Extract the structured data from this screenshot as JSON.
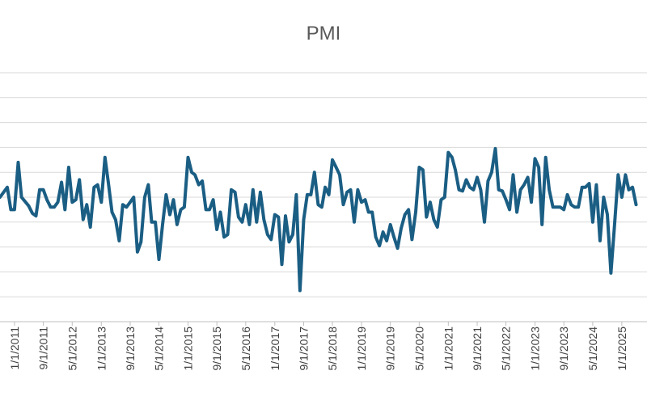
{
  "chart_data": {
    "type": "line",
    "title": "PMI",
    "xlabel": "",
    "ylabel": "",
    "grid": true,
    "legend": "none",
    "ylim": [
      44,
      64
    ],
    "xlim": [
      "2010-09-01",
      "2025-08-01"
    ],
    "x_tick_labels": [
      "1/1/2011",
      "9/1/2011",
      "5/1/2012",
      "1/1/2013",
      "9/1/2013",
      "5/1/2014",
      "1/1/2015",
      "9/1/2015",
      "5/1/2016",
      "1/1/2017",
      "9/1/2017",
      "5/1/2018",
      "1/1/2019",
      "9/1/2019",
      "5/1/2020",
      "1/1/2021",
      "9/1/2021",
      "5/1/2022",
      "1/1/2023",
      "9/1/2023",
      "5/1/2024",
      "1/1/2025"
    ],
    "series": [
      {
        "color": "#1b5e84",
        "points": [
          [
            "2010-09-01",
            54.0
          ],
          [
            "2010-11-01",
            54.8
          ],
          [
            "2010-12-01",
            53.0
          ],
          [
            "2011-01-01",
            53.0
          ],
          [
            "2011-02-01",
            56.8
          ],
          [
            "2011-03-01",
            54.0
          ],
          [
            "2011-05-01",
            53.3
          ],
          [
            "2011-06-01",
            52.7
          ],
          [
            "2011-07-01",
            52.5
          ],
          [
            "2011-08-01",
            54.6
          ],
          [
            "2011-09-01",
            54.6
          ],
          [
            "2011-10-01",
            53.8
          ],
          [
            "2011-11-01",
            53.2
          ],
          [
            "2011-12-01",
            53.2
          ],
          [
            "2012-01-01",
            53.6
          ],
          [
            "2012-02-01",
            55.2
          ],
          [
            "2012-03-01",
            53.0
          ],
          [
            "2012-04-01",
            56.4
          ],
          [
            "2012-05-01",
            53.6
          ],
          [
            "2012-06-01",
            53.8
          ],
          [
            "2012-07-01",
            55.4
          ],
          [
            "2012-08-01",
            52.2
          ],
          [
            "2012-09-01",
            53.4
          ],
          [
            "2012-10-01",
            51.6
          ],
          [
            "2012-11-01",
            54.8
          ],
          [
            "2012-12-01",
            55.0
          ],
          [
            "2013-01-01",
            53.6
          ],
          [
            "2013-02-01",
            57.2
          ],
          [
            "2013-03-01",
            55.2
          ],
          [
            "2013-04-01",
            52.8
          ],
          [
            "2013-05-01",
            52.2
          ],
          [
            "2013-06-01",
            50.5
          ],
          [
            "2013-07-01",
            53.4
          ],
          [
            "2013-08-01",
            53.2
          ],
          [
            "2013-09-01",
            53.6
          ],
          [
            "2013-10-01",
            54.0
          ],
          [
            "2013-11-01",
            49.6
          ],
          [
            "2013-12-01",
            50.4
          ],
          [
            "2014-01-01",
            54.0
          ],
          [
            "2014-02-01",
            55.0
          ],
          [
            "2014-03-01",
            52.0
          ],
          [
            "2014-04-01",
            52.0
          ],
          [
            "2014-05-01",
            49.0
          ],
          [
            "2014-06-01",
            51.8
          ],
          [
            "2014-07-01",
            54.2
          ],
          [
            "2014-08-01",
            52.6
          ],
          [
            "2014-09-01",
            53.8
          ],
          [
            "2014-10-01",
            51.8
          ],
          [
            "2014-11-01",
            53.0
          ],
          [
            "2014-12-01",
            53.2
          ],
          [
            "2015-01-01",
            57.2
          ],
          [
            "2015-02-01",
            56.0
          ],
          [
            "2015-03-01",
            55.8
          ],
          [
            "2015-04-01",
            55.0
          ],
          [
            "2015-05-01",
            55.3
          ],
          [
            "2015-06-01",
            53.0
          ],
          [
            "2015-07-01",
            53.0
          ],
          [
            "2015-08-01",
            53.8
          ],
          [
            "2015-09-01",
            51.4
          ],
          [
            "2015-10-01",
            52.8
          ],
          [
            "2015-11-01",
            50.8
          ],
          [
            "2015-12-01",
            51.0
          ],
          [
            "2016-01-01",
            54.6
          ],
          [
            "2016-02-01",
            54.4
          ],
          [
            "2016-03-01",
            52.4
          ],
          [
            "2016-04-01",
            52.0
          ],
          [
            "2016-05-01",
            53.4
          ],
          [
            "2016-06-01",
            51.8
          ],
          [
            "2016-07-01",
            54.6
          ],
          [
            "2016-08-01",
            52.0
          ],
          [
            "2016-09-01",
            54.4
          ],
          [
            "2016-10-01",
            52.2
          ],
          [
            "2016-11-01",
            51.0
          ],
          [
            "2016-12-01",
            50.6
          ],
          [
            "2017-01-01",
            52.6
          ],
          [
            "2017-02-01",
            52.4
          ],
          [
            "2017-03-01",
            48.6
          ],
          [
            "2017-04-01",
            52.5
          ],
          [
            "2017-05-01",
            50.4
          ],
          [
            "2017-06-01",
            51.0
          ],
          [
            "2017-07-01",
            54.2
          ],
          [
            "2017-08-01",
            46.5
          ],
          [
            "2017-09-01",
            52.2
          ],
          [
            "2017-10-01",
            54.2
          ],
          [
            "2017-11-01",
            54.2
          ],
          [
            "2017-12-01",
            56.0
          ],
          [
            "2018-01-01",
            53.4
          ],
          [
            "2018-02-01",
            53.2
          ],
          [
            "2018-03-01",
            54.8
          ],
          [
            "2018-04-01",
            54.2
          ],
          [
            "2018-05-01",
            57.0
          ],
          [
            "2018-06-01",
            56.4
          ],
          [
            "2018-07-01",
            55.8
          ],
          [
            "2018-08-01",
            53.4
          ],
          [
            "2018-09-01",
            54.4
          ],
          [
            "2018-10-01",
            54.6
          ],
          [
            "2018-11-01",
            52.0
          ],
          [
            "2018-12-01",
            54.6
          ],
          [
            "2019-01-01",
            53.6
          ],
          [
            "2019-02-01",
            53.8
          ],
          [
            "2019-03-01",
            52.8
          ],
          [
            "2019-04-01",
            52.8
          ],
          [
            "2019-05-01",
            50.8
          ],
          [
            "2019-06-01",
            50.1
          ],
          [
            "2019-07-01",
            51.2
          ],
          [
            "2019-08-01",
            50.5
          ],
          [
            "2019-09-01",
            51.8
          ],
          [
            "2019-10-01",
            50.8
          ],
          [
            "2019-11-01",
            49.9
          ],
          [
            "2019-12-01",
            51.5
          ],
          [
            "2020-01-01",
            52.6
          ],
          [
            "2020-02-01",
            53.0
          ],
          [
            "2020-03-01",
            50.6
          ],
          [
            "2020-04-01",
            52.8
          ],
          [
            "2020-05-01",
            56.4
          ],
          [
            "2020-06-01",
            56.2
          ],
          [
            "2020-07-01",
            52.4
          ],
          [
            "2020-08-01",
            53.6
          ],
          [
            "2020-09-01",
            52.2
          ],
          [
            "2020-10-01",
            51.6
          ],
          [
            "2020-11-01",
            53.8
          ],
          [
            "2020-12-01",
            54.0
          ],
          [
            "2021-01-01",
            57.6
          ],
          [
            "2021-02-01",
            57.2
          ],
          [
            "2021-03-01",
            56.2
          ],
          [
            "2021-04-01",
            54.6
          ],
          [
            "2021-05-01",
            54.5
          ],
          [
            "2021-06-01",
            55.4
          ],
          [
            "2021-07-01",
            54.8
          ],
          [
            "2021-08-01",
            54.6
          ],
          [
            "2021-09-01",
            55.6
          ],
          [
            "2021-10-01",
            54.6
          ],
          [
            "2021-11-01",
            52.0
          ],
          [
            "2021-12-01",
            55.3
          ],
          [
            "2022-01-01",
            56.0
          ],
          [
            "2022-02-01",
            57.9
          ],
          [
            "2022-03-01",
            54.6
          ],
          [
            "2022-04-01",
            54.5
          ],
          [
            "2022-05-01",
            53.8
          ],
          [
            "2022-06-01",
            53.0
          ],
          [
            "2022-07-01",
            55.8
          ],
          [
            "2022-08-01",
            52.8
          ],
          [
            "2022-09-01",
            54.6
          ],
          [
            "2022-10-01",
            55.0
          ],
          [
            "2022-11-01",
            55.6
          ],
          [
            "2022-12-01",
            53.6
          ],
          [
            "2023-01-01",
            57.1
          ],
          [
            "2023-02-01",
            56.4
          ],
          [
            "2023-03-01",
            51.8
          ],
          [
            "2023-04-01",
            57.2
          ],
          [
            "2023-05-01",
            54.6
          ],
          [
            "2023-06-01",
            53.2
          ],
          [
            "2023-07-01",
            53.2
          ],
          [
            "2023-08-01",
            53.2
          ],
          [
            "2023-09-01",
            53.0
          ],
          [
            "2023-10-01",
            54.2
          ],
          [
            "2023-11-01",
            53.4
          ],
          [
            "2023-12-01",
            53.2
          ],
          [
            "2024-01-01",
            53.2
          ],
          [
            "2024-02-01",
            54.8
          ],
          [
            "2024-03-01",
            54.8
          ],
          [
            "2024-04-01",
            55.1
          ],
          [
            "2024-05-01",
            52.0
          ],
          [
            "2024-06-01",
            55.0
          ],
          [
            "2024-07-01",
            50.5
          ],
          [
            "2024-08-01",
            54.0
          ],
          [
            "2024-09-01",
            52.6
          ],
          [
            "2024-10-01",
            47.9
          ],
          [
            "2024-11-01",
            51.8
          ],
          [
            "2024-12-01",
            55.8
          ],
          [
            "2025-01-01",
            54.0
          ],
          [
            "2025-02-01",
            55.8
          ],
          [
            "2025-03-01",
            54.6
          ],
          [
            "2025-04-01",
            54.8
          ],
          [
            "2025-05-01",
            53.4
          ]
        ]
      }
    ]
  }
}
